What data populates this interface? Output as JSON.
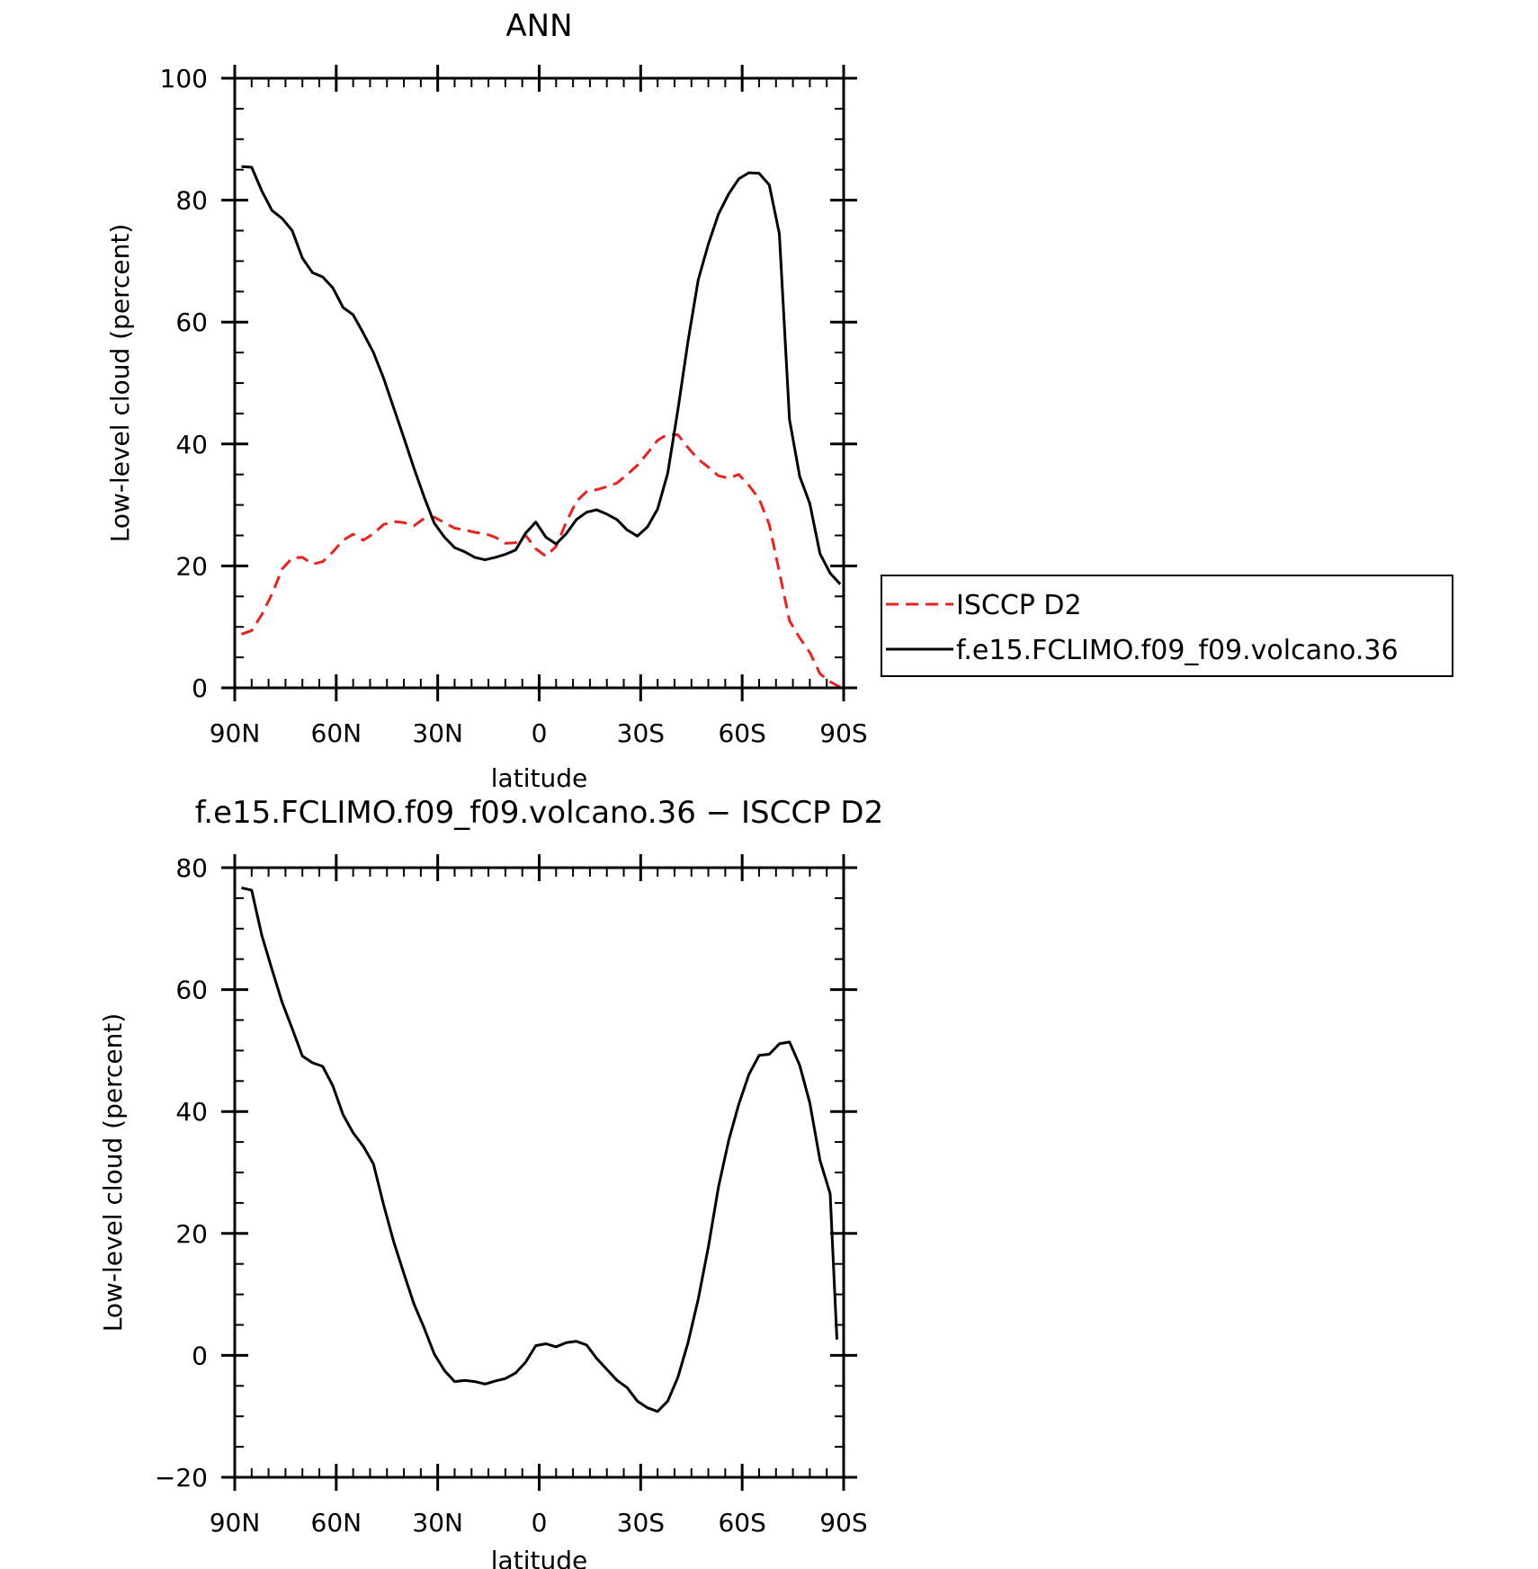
{
  "chart_data": [
    {
      "type": "line",
      "title": "ANN",
      "xlabel": "latitude",
      "ylabel": "Low-level cloud (percent)",
      "xlim": [
        90,
        -90
      ],
      "ylim": [
        0,
        100
      ],
      "xticks": [
        {
          "value": 90,
          "label": "90N"
        },
        {
          "value": 60,
          "label": "60N"
        },
        {
          "value": 30,
          "label": "30N"
        },
        {
          "value": 0,
          "label": "0"
        },
        {
          "value": -30,
          "label": "30S"
        },
        {
          "value": -60,
          "label": "60S"
        },
        {
          "value": -90,
          "label": "90S"
        }
      ],
      "yticks": [
        {
          "value": 0,
          "label": "0"
        },
        {
          "value": 20,
          "label": "20"
        },
        {
          "value": 40,
          "label": "40"
        },
        {
          "value": 60,
          "label": "60"
        },
        {
          "value": 80,
          "label": "80"
        },
        {
          "value": 100,
          "label": "100"
        }
      ],
      "legend_position": "right",
      "series": [
        {
          "name": "ISCCP D2",
          "color": "#e8231f",
          "style": "dashed",
          "x": [
            88,
            85,
            82,
            79,
            76,
            73,
            70,
            67,
            64,
            61,
            58,
            55,
            52,
            49,
            46,
            43,
            40,
            37,
            34,
            31,
            28,
            25,
            22,
            19,
            16,
            13,
            10,
            7,
            4,
            1,
            -2,
            -5,
            -8,
            -11,
            -14,
            -17,
            -20,
            -23,
            -26,
            -29,
            -32,
            -35,
            -38,
            -41,
            -44,
            -47,
            -50,
            -53,
            -56,
            -59,
            -62,
            -65,
            -68,
            -71,
            -74,
            -77,
            -80,
            -83,
            -86,
            -89
          ],
          "y": [
            8.8,
            9.4,
            12.0,
            15.4,
            19.5,
            21.3,
            21.4,
            20.3,
            20.7,
            22.3,
            24.2,
            25.2,
            24.2,
            25.3,
            26.8,
            27.3,
            27.1,
            26.6,
            27.8,
            28.0,
            27.1,
            26.2,
            25.9,
            25.5,
            25.3,
            24.7,
            23.7,
            23.8,
            25.0,
            22.8,
            21.6,
            23.2,
            27.2,
            30.6,
            32.2,
            32.5,
            33.0,
            33.6,
            35.0,
            36.5,
            38.5,
            40.6,
            41.6,
            41.5,
            39.4,
            37.5,
            36.2,
            34.8,
            34.4,
            35.0,
            33.2,
            31.0,
            26.8,
            19.0,
            11.0,
            8.2,
            5.8,
            2.3,
            1.0,
            0.1
          ]
        },
        {
          "name": "f.e15.FCLIMO.f09_f09.volcano.36",
          "color": "#000000",
          "style": "solid",
          "x": [
            88,
            85,
            82,
            79,
            76,
            73,
            70,
            67,
            64,
            61,
            58,
            55,
            52,
            49,
            46,
            43,
            40,
            37,
            34,
            31,
            28,
            25,
            22,
            19,
            16,
            13,
            10,
            7,
            4,
            1,
            -2,
            -5,
            -8,
            -11,
            -14,
            -17,
            -20,
            -23,
            -26,
            -29,
            -32,
            -35,
            -38,
            -41,
            -44,
            -47,
            -50,
            -53,
            -56,
            -59,
            -62,
            -65,
            -68,
            -71,
            -74,
            -77,
            -80,
            -83,
            -86,
            -89
          ],
          "y": [
            85.5,
            85.4,
            81.5,
            78.3,
            77.0,
            75.0,
            70.5,
            68.1,
            67.4,
            65.6,
            62.4,
            61.2,
            58.2,
            55.0,
            50.8,
            45.9,
            41.0,
            36.0,
            31.3,
            27.0,
            24.7,
            23.0,
            22.3,
            21.4,
            21.0,
            21.4,
            21.9,
            22.6,
            25.4,
            27.2,
            24.7,
            23.6,
            25.3,
            27.6,
            28.8,
            29.2,
            28.5,
            27.6,
            25.9,
            24.9,
            26.4,
            29.3,
            35.2,
            45.6,
            56.9,
            66.9,
            72.8,
            77.7,
            81.0,
            83.5,
            84.5,
            84.4,
            82.5,
            74.5,
            44.0,
            34.7,
            30.2,
            22.0,
            18.8,
            17.0
          ]
        }
      ]
    },
    {
      "type": "line",
      "title": "f.e15.FCLIMO.f09_f09.volcano.36 − ISCCP D2",
      "xlabel": "latitude",
      "ylabel": "Low-level cloud (percent)",
      "xlim": [
        90,
        -90
      ],
      "ylim": [
        -20,
        80
      ],
      "xticks": [
        {
          "value": 90,
          "label": "90N"
        },
        {
          "value": 60,
          "label": "60N"
        },
        {
          "value": 30,
          "label": "30N"
        },
        {
          "value": 0,
          "label": "0"
        },
        {
          "value": -30,
          "label": "30S"
        },
        {
          "value": -60,
          "label": "60S"
        },
        {
          "value": -90,
          "label": "90S"
        }
      ],
      "yticks": [
        {
          "value": -20,
          "label": "−20"
        },
        {
          "value": 0,
          "label": "0"
        },
        {
          "value": 20,
          "label": "20"
        },
        {
          "value": 40,
          "label": "40"
        },
        {
          "value": 60,
          "label": "60"
        },
        {
          "value": 80,
          "label": "80"
        }
      ],
      "series": [
        {
          "color": "#000000",
          "style": "solid",
          "x": [
            88,
            85,
            82,
            79,
            76,
            73,
            70,
            67,
            64,
            61,
            58,
            55,
            52,
            49,
            46,
            43,
            40,
            37,
            34,
            31,
            28,
            25,
            22,
            19,
            16,
            13,
            10,
            7,
            4,
            1,
            -2,
            -5,
            -8,
            -11,
            -14,
            -17,
            -20,
            -23,
            -26,
            -29,
            -32,
            -35,
            -38,
            -41,
            -44,
            -47,
            -50,
            -53,
            -56,
            -59,
            -62,
            -65,
            -68,
            -71,
            -74,
            -77,
            -80,
            -83,
            -86,
            -88
          ],
          "y": [
            76.7,
            76.3,
            68.9,
            63.3,
            57.9,
            53.6,
            49.1,
            48.0,
            47.4,
            44.2,
            39.5,
            36.5,
            34.3,
            31.4,
            24.7,
            18.6,
            13.4,
            8.4,
            4.5,
            0.2,
            -2.5,
            -4.3,
            -4.1,
            -4.3,
            -4.7,
            -4.2,
            -3.8,
            -2.9,
            -1.1,
            1.6,
            1.9,
            1.4,
            2.1,
            2.3,
            1.7,
            -0.5,
            -2.3,
            -4.1,
            -5.3,
            -7.5,
            -8.6,
            -9.2,
            -7.5,
            -3.6,
            2.1,
            9.2,
            17.8,
            27.6,
            35.2,
            41.2,
            46.1,
            49.2,
            49.4,
            51.1,
            51.4,
            47.6,
            41.4,
            32.0,
            26.5,
            2.6
          ]
        }
      ]
    }
  ]
}
